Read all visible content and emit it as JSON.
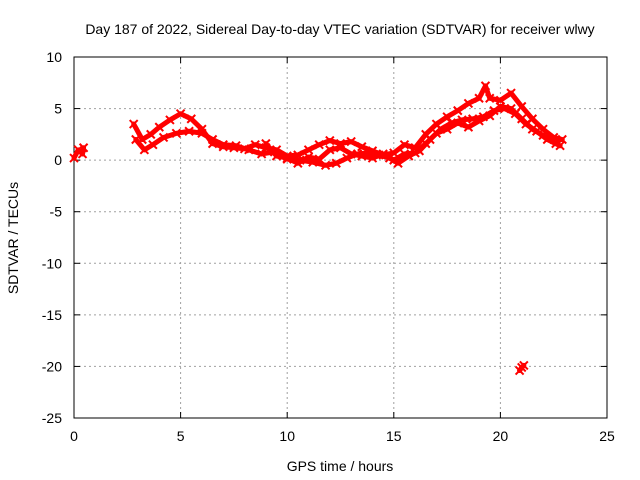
{
  "chart_data": {
    "type": "scatter",
    "title": "Day 187 of 2022, Sidereal Day-to-day VTEC variation (SDTVAR) for receiver wlwy",
    "xlabel": "GPS time / hours",
    "ylabel": "SDTVAR / TECUs",
    "xlim": [
      0,
      25
    ],
    "ylim": [
      -25,
      10
    ],
    "xticks": [
      0,
      5,
      10,
      15,
      20,
      25
    ],
    "yticks": [
      -25,
      -20,
      -15,
      -10,
      -5,
      0,
      5,
      10
    ],
    "grid": true,
    "marker_color": "#ff0000",
    "series": [
      {
        "name": "track-a",
        "points": [
          [
            0.0,
            0.2
          ],
          [
            0.2,
            1.0
          ],
          [
            0.4,
            0.6
          ],
          [
            0.45,
            1.2
          ]
        ]
      },
      {
        "name": "track-b",
        "points": [
          [
            2.8,
            3.5
          ],
          [
            3.2,
            2.0
          ],
          [
            3.6,
            2.5
          ],
          [
            4.0,
            3.2
          ],
          [
            4.5,
            3.9
          ],
          [
            5.0,
            4.5
          ],
          [
            5.5,
            4.0
          ],
          [
            6.0,
            3.0
          ],
          [
            6.5,
            1.6
          ],
          [
            7.0,
            1.3
          ],
          [
            7.5,
            1.2
          ],
          [
            8.0,
            1.1
          ],
          [
            8.5,
            1.5
          ],
          [
            9.0,
            1.2
          ],
          [
            9.5,
            1.0
          ],
          [
            10.0,
            0.4
          ],
          [
            10.5,
            0.5
          ],
          [
            11.0,
            1.0
          ],
          [
            11.5,
            1.5
          ],
          [
            12.0,
            1.9
          ],
          [
            12.5,
            1.6
          ],
          [
            13.0,
            1.8
          ],
          [
            13.5,
            1.3
          ],
          [
            14.0,
            0.9
          ],
          [
            14.5,
            0.5
          ],
          [
            15.0,
            0.7
          ],
          [
            15.5,
            1.5
          ],
          [
            16.0,
            1.2
          ],
          [
            16.5,
            2.5
          ],
          [
            17.0,
            3.5
          ],
          [
            17.5,
            4.2
          ],
          [
            18.0,
            4.8
          ],
          [
            18.5,
            5.5
          ],
          [
            19.0,
            6.0
          ],
          [
            19.3,
            7.2
          ],
          [
            19.5,
            6.0
          ],
          [
            20.0,
            5.8
          ],
          [
            20.5,
            6.5
          ],
          [
            21.0,
            5.2
          ],
          [
            21.5,
            4.0
          ],
          [
            22.0,
            3.0
          ],
          [
            22.5,
            2.2
          ],
          [
            22.9,
            2.0
          ]
        ]
      },
      {
        "name": "track-c",
        "points": [
          [
            2.9,
            2.0
          ],
          [
            3.3,
            1.0
          ],
          [
            3.7,
            1.5
          ],
          [
            4.2,
            2.2
          ],
          [
            4.8,
            2.6
          ],
          [
            5.4,
            2.8
          ],
          [
            6.0,
            2.6
          ],
          [
            6.5,
            2.0
          ],
          [
            7.0,
            1.5
          ],
          [
            7.6,
            1.4
          ],
          [
            8.2,
            1.0
          ],
          [
            8.8,
            0.6
          ],
          [
            9.4,
            0.8
          ],
          [
            10.0,
            0.1
          ],
          [
            10.6,
            0.0
          ],
          [
            11.2,
            -0.2
          ],
          [
            11.8,
            -0.5
          ],
          [
            12.3,
            -0.3
          ],
          [
            12.8,
            0.2
          ],
          [
            13.3,
            0.6
          ],
          [
            13.8,
            0.7
          ],
          [
            14.3,
            0.5
          ],
          [
            14.8,
            0.2
          ],
          [
            15.2,
            -0.3
          ],
          [
            15.7,
            0.4
          ],
          [
            16.2,
            0.9
          ],
          [
            16.7,
            2.0
          ],
          [
            17.2,
            3.0
          ],
          [
            17.7,
            3.6
          ],
          [
            18.2,
            3.9
          ],
          [
            18.7,
            4.0
          ],
          [
            19.2,
            4.2
          ],
          [
            19.7,
            4.8
          ],
          [
            20.2,
            5.0
          ],
          [
            20.7,
            4.5
          ],
          [
            21.2,
            3.5
          ],
          [
            21.7,
            2.8
          ],
          [
            22.2,
            2.0
          ],
          [
            22.8,
            1.4
          ]
        ]
      },
      {
        "name": "track-d",
        "points": [
          [
            9.0,
            1.6
          ],
          [
            9.5,
            0.4
          ],
          [
            10.0,
            0.2
          ],
          [
            10.5,
            -0.3
          ],
          [
            11.0,
            0.3
          ],
          [
            11.5,
            0.1
          ],
          [
            12.0,
            1.0
          ],
          [
            12.5,
            1.2
          ],
          [
            13.0,
            0.6
          ],
          [
            13.5,
            0.4
          ],
          [
            14.0,
            0.2
          ],
          [
            14.5,
            0.6
          ],
          [
            15.0,
            0.0
          ],
          [
            15.5,
            0.6
          ],
          [
            16.0,
            0.7
          ],
          [
            16.5,
            1.6
          ],
          [
            17.0,
            2.6
          ],
          [
            17.5,
            3.0
          ],
          [
            18.0,
            3.6
          ],
          [
            18.5,
            3.2
          ],
          [
            19.0,
            3.8
          ],
          [
            19.5,
            4.3
          ],
          [
            20.0,
            5.2
          ],
          [
            20.5,
            5.0
          ],
          [
            21.0,
            4.0
          ],
          [
            21.5,
            3.0
          ],
          [
            22.0,
            2.4
          ],
          [
            22.6,
            1.6
          ]
        ]
      },
      {
        "name": "track-e",
        "points": [
          [
            20.9,
            -20.4
          ],
          [
            21.0,
            -20.1
          ],
          [
            21.1,
            -19.9
          ]
        ]
      }
    ]
  }
}
